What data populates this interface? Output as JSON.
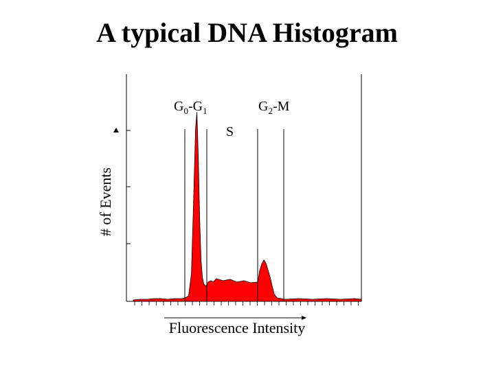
{
  "title": "A typical DNA Histogram",
  "chart_data": {
    "type": "area",
    "title": "A typical DNA Histogram",
    "xlabel": "Fluorescence Intensity",
    "ylabel": "# of Events",
    "xlim": [
      0,
      340
    ],
    "ylim": [
      0,
      330
    ],
    "grid": false,
    "fill_color": "#ff0000",
    "region_labels": {
      "g0g1": {
        "base1": "G",
        "sub1": "0",
        "mid": "-G",
        "sub2": "1"
      },
      "s": "S",
      "g2m": {
        "base": "G",
        "sub": "2",
        "rest": "-M"
      }
    },
    "series": [
      {
        "x": [
          10,
          20,
          30,
          40,
          50,
          60,
          70,
          80,
          85,
          90,
          94,
          97,
          100,
          102,
          104,
          106,
          108,
          110,
          112,
          115,
          118,
          122,
          126,
          130,
          140,
          150,
          160,
          170,
          180,
          190,
          193,
          196,
          199,
          202,
          205,
          208,
          211,
          214,
          218,
          230,
          250,
          270,
          290,
          310,
          330,
          340
        ],
        "y": [
          2,
          3,
          3,
          4,
          4,
          3,
          4,
          4,
          5,
          8,
          40,
          140,
          250,
          275,
          210,
          120,
          60,
          35,
          25,
          22,
          28,
          30,
          28,
          33,
          30,
          32,
          28,
          30,
          27,
          28,
          45,
          55,
          60,
          55,
          45,
          35,
          22,
          10,
          5,
          3,
          4,
          3,
          4,
          3,
          4,
          3
        ]
      }
    ]
  }
}
